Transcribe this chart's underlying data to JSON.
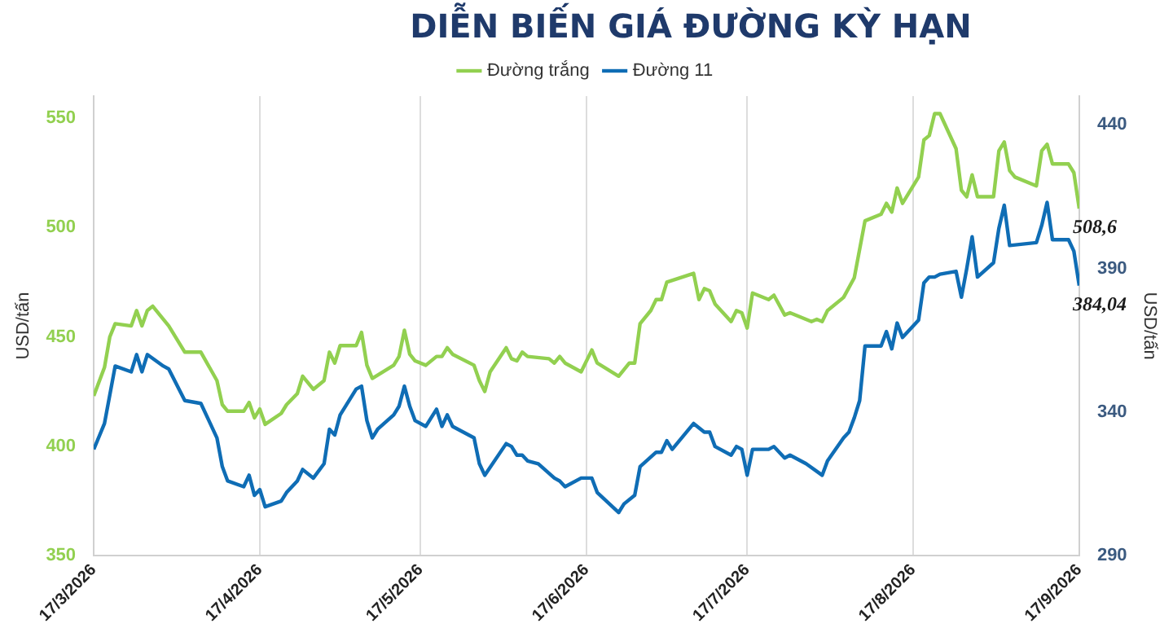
{
  "chart_data": {
    "type": "line",
    "title": "DIỄN BIẾN GIÁ ĐƯỜNG KỲ HẠN",
    "ylabel": "USD/tấn",
    "y2label": "USD/tấn",
    "xlim": [
      "2026-03-17",
      "2026-09-17"
    ],
    "xticks": [
      {
        "value": "2026-03-17",
        "label": "17/3/2026"
      },
      {
        "value": "2026-04-17",
        "label": "17/4/2026"
      },
      {
        "value": "2026-05-17",
        "label": "17/5/2026"
      },
      {
        "value": "2026-06-17",
        "label": "17/6/2026"
      },
      {
        "value": "2026-07-17",
        "label": "17/7/2026"
      },
      {
        "value": "2026-08-17",
        "label": "17/8/2026"
      },
      {
        "value": "2026-09-17",
        "label": "17/9/2026"
      }
    ],
    "ylim": [
      350,
      560
    ],
    "yticks": [
      350,
      400,
      450,
      500,
      550
    ],
    "y2lim": [
      290,
      450
    ],
    "y2ticks": [
      290,
      340,
      390,
      440
    ],
    "grid": "x",
    "legend": "top",
    "series": [
      {
        "name": "Đường trắng",
        "color": "#92d050",
        "x": [
          "2026-03-17",
          "2026-03-19",
          "2026-03-20",
          "2026-03-21",
          "2026-03-24",
          "2026-03-25",
          "2026-03-26",
          "2026-03-27",
          "2026-03-28",
          "2026-03-31",
          "2026-04-03",
          "2026-04-06",
          "2026-04-09",
          "2026-04-10",
          "2026-04-11",
          "2026-04-14",
          "2026-04-15",
          "2026-04-16",
          "2026-04-17",
          "2026-04-18",
          "2026-04-21",
          "2026-04-22",
          "2026-04-24",
          "2026-04-25",
          "2026-04-27",
          "2026-04-29",
          "2026-04-30",
          "2026-05-01",
          "2026-05-02",
          "2026-05-05",
          "2026-05-06",
          "2026-05-07",
          "2026-05-08",
          "2026-05-12",
          "2026-05-13",
          "2026-05-14",
          "2026-05-15",
          "2026-05-16",
          "2026-05-18",
          "2026-05-20",
          "2026-05-21",
          "2026-05-22",
          "2026-05-23",
          "2026-05-27",
          "2026-05-28",
          "2026-05-29",
          "2026-05-30",
          "2026-06-02",
          "2026-06-03",
          "2026-06-04",
          "2026-06-05",
          "2026-06-06",
          "2026-06-10",
          "2026-06-11",
          "2026-06-12",
          "2026-06-13",
          "2026-06-16",
          "2026-06-18",
          "2026-06-19",
          "2026-06-23",
          "2026-06-25",
          "2026-06-26",
          "2026-06-27",
          "2026-06-29",
          "2026-06-30",
          "2026-07-01",
          "2026-07-02",
          "2026-07-07",
          "2026-07-08",
          "2026-07-09",
          "2026-07-10",
          "2026-07-11",
          "2026-07-14",
          "2026-07-15",
          "2026-07-16",
          "2026-07-17",
          "2026-07-18",
          "2026-07-21",
          "2026-07-22",
          "2026-07-24",
          "2026-07-25",
          "2026-07-29",
          "2026-07-30",
          "2026-07-31",
          "2026-08-01",
          "2026-08-04",
          "2026-08-06",
          "2026-08-08",
          "2026-08-11",
          "2026-08-12",
          "2026-08-13",
          "2026-08-14",
          "2026-08-15",
          "2026-08-18",
          "2026-08-19",
          "2026-08-20",
          "2026-08-21",
          "2026-08-22",
          "2026-08-25",
          "2026-08-26",
          "2026-08-27",
          "2026-08-28",
          "2026-08-29",
          "2026-09-01",
          "2026-09-02",
          "2026-09-03",
          "2026-09-04",
          "2026-09-05",
          "2026-09-09",
          "2026-09-10",
          "2026-09-11",
          "2026-09-12",
          "2026-09-15",
          "2026-09-16",
          "2026-09-17"
        ],
        "values": [
          423,
          436,
          450,
          456,
          455,
          462,
          455,
          462,
          464,
          455,
          443,
          443,
          430,
          419,
          416,
          416,
          420,
          413,
          417,
          410,
          415,
          419,
          424,
          432,
          426,
          430,
          443,
          438,
          446,
          446,
          452,
          437,
          431,
          437,
          441,
          453,
          442,
          439,
          437,
          441,
          441,
          445,
          442,
          437,
          430,
          425,
          434,
          445,
          440,
          439,
          443,
          441,
          440,
          438,
          441,
          438,
          434,
          444,
          438,
          432,
          438,
          438,
          456,
          462,
          467,
          467,
          475,
          479,
          467,
          472,
          471,
          465,
          457,
          462,
          461,
          454,
          470,
          467,
          469,
          460,
          461,
          457,
          458,
          457,
          462,
          468,
          477,
          503,
          506,
          511,
          507,
          518,
          511,
          523,
          540,
          542,
          552,
          552,
          536,
          517,
          514,
          524,
          514,
          514,
          535,
          539,
          526,
          523,
          519,
          535,
          538,
          529,
          529,
          525,
          508.6
        ],
        "value_labels": [
          null,
          null,
          null,
          null,
          null,
          null,
          null,
          null,
          null,
          null,
          null,
          null,
          null,
          null,
          null,
          null,
          null,
          null,
          null,
          null,
          null,
          null,
          null,
          null,
          null,
          null,
          null,
          null,
          null,
          null,
          null,
          null,
          null,
          null,
          null,
          null,
          null,
          null,
          null,
          null,
          null,
          null,
          null,
          null,
          null,
          null,
          null,
          null,
          null,
          null,
          null,
          null,
          null,
          null,
          null,
          null,
          null,
          null,
          null,
          null,
          null,
          null,
          null,
          null,
          null,
          null,
          null,
          null,
          null,
          null,
          null,
          null,
          null,
          null,
          null,
          null,
          null,
          null,
          null,
          null,
          null,
          null,
          null,
          null,
          null,
          null,
          null,
          null,
          null,
          null,
          null,
          null,
          null,
          null,
          null,
          null,
          null,
          null,
          null,
          null,
          null,
          null,
          null,
          null,
          null,
          null,
          null,
          null,
          null,
          null,
          null,
          null,
          null,
          null,
          "508,6"
        ]
      },
      {
        "name": "Đường 11",
        "color": "#0f6db5",
        "axis": "y2",
        "x": [
          "2026-03-17",
          "2026-03-19",
          "2026-03-21",
          "2026-03-24",
          "2026-03-25",
          "2026-03-26",
          "2026-03-27",
          "2026-03-30",
          "2026-03-31",
          "2026-04-03",
          "2026-04-06",
          "2026-04-09",
          "2026-04-10",
          "2026-04-11",
          "2026-04-14",
          "2026-04-15",
          "2026-04-16",
          "2026-04-17",
          "2026-04-18",
          "2026-04-21",
          "2026-04-22",
          "2026-04-24",
          "2026-04-25",
          "2026-04-27",
          "2026-04-29",
          "2026-04-30",
          "2026-05-01",
          "2026-05-02",
          "2026-05-05",
          "2026-05-06",
          "2026-05-07",
          "2026-05-08",
          "2026-05-09",
          "2026-05-12",
          "2026-05-13",
          "2026-05-14",
          "2026-05-15",
          "2026-05-16",
          "2026-05-18",
          "2026-05-20",
          "2026-05-21",
          "2026-05-22",
          "2026-05-23",
          "2026-05-27",
          "2026-05-28",
          "2026-05-29",
          "2026-06-02",
          "2026-06-03",
          "2026-06-04",
          "2026-06-05",
          "2026-06-06",
          "2026-06-08",
          "2026-06-11",
          "2026-06-12",
          "2026-06-13",
          "2026-06-16",
          "2026-06-18",
          "2026-06-19",
          "2026-06-23",
          "2026-06-24",
          "2026-06-26",
          "2026-06-27",
          "2026-06-30",
          "2026-07-01",
          "2026-07-02",
          "2026-07-03",
          "2026-07-07",
          "2026-07-09",
          "2026-07-10",
          "2026-07-11",
          "2026-07-14",
          "2026-07-15",
          "2026-07-16",
          "2026-07-17",
          "2026-07-18",
          "2026-07-21",
          "2026-07-22",
          "2026-07-24",
          "2026-07-25",
          "2026-07-28",
          "2026-07-31",
          "2026-08-01",
          "2026-08-04",
          "2026-08-05",
          "2026-08-06",
          "2026-08-07",
          "2026-08-08",
          "2026-08-11",
          "2026-08-12",
          "2026-08-13",
          "2026-08-14",
          "2026-08-15",
          "2026-08-18",
          "2026-08-19",
          "2026-08-20",
          "2026-08-21",
          "2026-08-22",
          "2026-08-25",
          "2026-08-26",
          "2026-08-27",
          "2026-08-28",
          "2026-08-29",
          "2026-09-01",
          "2026-09-02",
          "2026-09-03",
          "2026-09-04",
          "2026-09-09",
          "2026-09-10",
          "2026-09-11",
          "2026-09-12",
          "2026-09-15",
          "2026-09-16",
          "2026-09-17"
        ],
        "values": [
          327,
          336,
          356,
          354,
          360,
          354,
          360,
          356,
          355,
          344,
          343,
          331,
          321,
          316,
          314,
          318,
          311,
          313,
          307,
          309,
          312,
          316,
          320,
          317,
          322,
          334,
          332,
          339,
          348,
          349,
          337,
          331,
          334,
          339,
          342,
          349,
          342,
          337,
          335,
          341,
          335,
          339,
          335,
          331,
          322,
          318,
          329,
          328,
          325,
          325,
          323,
          322,
          317,
          316,
          314,
          317,
          317,
          312,
          305,
          308,
          311,
          321,
          326,
          326,
          330,
          327,
          336,
          333,
          333,
          328,
          325,
          328,
          327,
          318,
          327,
          327,
          328,
          324,
          325,
          322,
          318,
          323,
          331,
          333,
          338,
          344,
          363,
          363,
          368,
          362,
          371,
          366,
          372,
          385,
          387,
          387,
          388,
          389,
          380,
          390,
          401,
          387,
          392,
          404,
          412,
          398,
          399,
          405,
          413,
          400,
          400,
          396,
          384.04
        ],
        "value_labels": [
          null,
          null,
          null,
          null,
          null,
          null,
          null,
          null,
          null,
          null,
          null,
          null,
          null,
          null,
          null,
          null,
          null,
          null,
          null,
          null,
          null,
          null,
          null,
          null,
          null,
          null,
          null,
          null,
          null,
          null,
          null,
          null,
          null,
          null,
          null,
          null,
          null,
          null,
          null,
          null,
          null,
          null,
          null,
          null,
          null,
          null,
          null,
          null,
          null,
          null,
          null,
          null,
          null,
          null,
          null,
          null,
          null,
          null,
          null,
          null,
          null,
          null,
          null,
          null,
          null,
          null,
          null,
          null,
          null,
          null,
          null,
          null,
          null,
          null,
          null,
          null,
          null,
          null,
          null,
          null,
          null,
          null,
          null,
          null,
          null,
          null,
          null,
          null,
          null,
          null,
          null,
          null,
          null,
          null,
          null,
          null,
          null,
          null,
          null,
          null,
          null,
          null,
          null,
          null,
          null,
          null,
          null,
          null,
          null,
          null,
          null,
          null,
          "384,04"
        ]
      }
    ]
  }
}
